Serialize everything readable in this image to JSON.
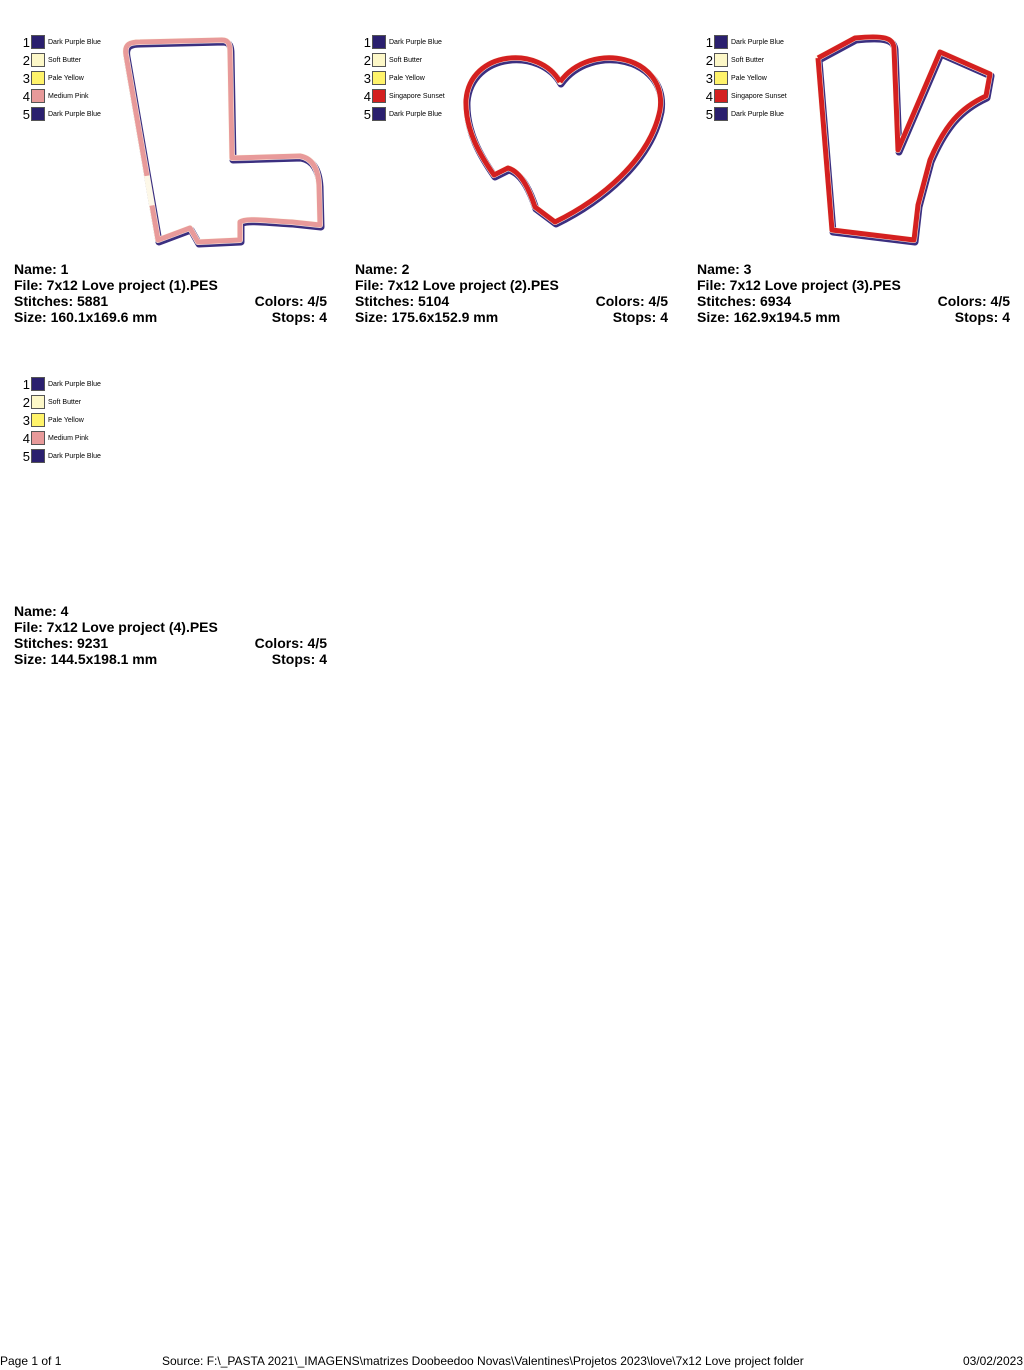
{
  "designs": [
    {
      "name_label": "Name: 1",
      "file_label": "File: 7x12  Love project (1).PES",
      "stitches_label": "Stitches: 5881",
      "colors_label": "Colors: 4/5",
      "size_label": "Size: 160.1x169.6 mm",
      "stops_label": "Stops: 4",
      "palette": [
        {
          "num": "1",
          "name": "Dark Purple Blue",
          "color": "#2a1f6e"
        },
        {
          "num": "2",
          "name": "Soft Butter",
          "color": "#fdf8c8"
        },
        {
          "num": "3",
          "name": "Pale Yellow",
          "color": "#fff36a"
        },
        {
          "num": "4",
          "name": "Medium Pink",
          "color": "#e89a9a"
        },
        {
          "num": "5",
          "name": "Dark Purple Blue",
          "color": "#2a1f6e"
        }
      ]
    },
    {
      "name_label": "Name: 2",
      "file_label": "File: 7x12  Love project (2).PES",
      "stitches_label": "Stitches: 5104",
      "colors_label": "Colors: 4/5",
      "size_label": "Size: 175.6x152.9 mm",
      "stops_label": "Stops: 4",
      "palette": [
        {
          "num": "1",
          "name": "Dark Purple Blue",
          "color": "#2a1f6e"
        },
        {
          "num": "2",
          "name": "Soft Butter",
          "color": "#fdf8c8"
        },
        {
          "num": "3",
          "name": "Pale Yellow",
          "color": "#fff36a"
        },
        {
          "num": "4",
          "name": "Singapore Sunset",
          "color": "#d42020"
        },
        {
          "num": "5",
          "name": "Dark Purple Blue",
          "color": "#2a1f6e"
        }
      ]
    },
    {
      "name_label": "Name: 3",
      "file_label": "File: 7x12  Love project (3).PES",
      "stitches_label": "Stitches: 6934",
      "colors_label": "Colors: 4/5",
      "size_label": "Size: 162.9x194.5 mm",
      "stops_label": "Stops: 4",
      "palette": [
        {
          "num": "1",
          "name": "Dark Purple Blue",
          "color": "#2a1f6e"
        },
        {
          "num": "2",
          "name": "Soft Butter",
          "color": "#fdf8c8"
        },
        {
          "num": "3",
          "name": "Pale Yellow",
          "color": "#fff36a"
        },
        {
          "num": "4",
          "name": "Singapore Sunset",
          "color": "#d42020"
        },
        {
          "num": "5",
          "name": "Dark Purple Blue",
          "color": "#2a1f6e"
        }
      ]
    },
    {
      "name_label": "Name: 4",
      "file_label": "File: 7x12  Love project (4).PES",
      "stitches_label": "Stitches: 9231",
      "colors_label": "Colors: 4/5",
      "size_label": "Size: 144.5x198.1 mm",
      "stops_label": "Stops: 4",
      "palette": [
        {
          "num": "1",
          "name": "Dark Purple Blue",
          "color": "#2a1f6e"
        },
        {
          "num": "2",
          "name": "Soft Butter",
          "color": "#fdf8c8"
        },
        {
          "num": "3",
          "name": "Pale Yellow",
          "color": "#fff36a"
        },
        {
          "num": "4",
          "name": "Medium Pink",
          "color": "#e89a9a"
        },
        {
          "num": "5",
          "name": "Dark Purple Blue",
          "color": "#2a1f6e"
        }
      ]
    }
  ],
  "footer": {
    "page": "Page 1 of 1",
    "source": "Source: F:\\_PASTA 2021\\_IMAGENS\\matrizes Doobeedoo Novas\\Valentines\\Projetos 2023\\love\\7x12  Love project folder",
    "date": "03/02/2023"
  }
}
